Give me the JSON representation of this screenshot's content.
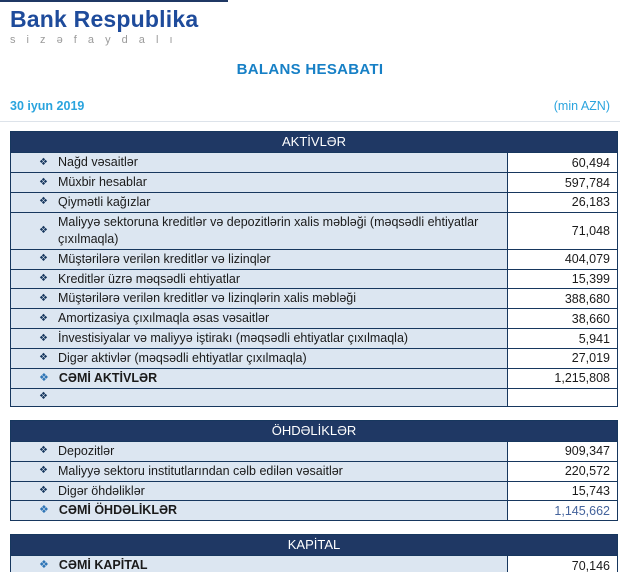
{
  "brand": {
    "name": "Bank Respublika",
    "tagline": "s i z ə  f a y d a l ı"
  },
  "title": "BALANS HESABATI",
  "meta": {
    "date": "30 iyun 2019",
    "unit": "(min AZN)"
  },
  "icons": {
    "bullet": "❖"
  },
  "colors": {
    "brand_blue": "#1e4b9b",
    "title_blue": "#1780c6",
    "meta_cyan": "#2aa4de",
    "header_navy": "#1f3864",
    "row_bg": "#dce6f1",
    "border_navy": "#17375e",
    "total_bullet_blue": "#2e75b6",
    "total_value_navy": "#44639c"
  },
  "sections": [
    {
      "header": "AKTİVLƏR",
      "rows": [
        {
          "label": "Nağd vəsaitlər",
          "value": "60,494"
        },
        {
          "label": "Müxbir hesablar",
          "value": "597,784"
        },
        {
          "label": "Qiymətli kağızlar",
          "value": "26,183"
        },
        {
          "label": "Maliyyə sektoruna kreditlər və depozitlərin xalis məbləği (məqsədli ehtiyatlar çıxılmaqla)",
          "value": "71,048"
        },
        {
          "label": "Müştərilərə verilən kreditlər və lizinqlər",
          "value": "404,079"
        },
        {
          "label": "Kreditlər üzrə məqsədli ehtiyatlar",
          "value": "15,399"
        },
        {
          "label": "Müştərilərə verilən kreditlər və lizinqlərin xalis məbləği",
          "value": "388,680"
        },
        {
          "label": "Amortizasiya çıxılmaqla əsas vəsaitlər",
          "value": "38,660"
        },
        {
          "label": "İnvestisiyalar və maliyyə iştirakı (məqsədli ehtiyatlar çıxılmaqla)",
          "value": "5,941"
        },
        {
          "label": "Digər aktivlər (məqsədli ehtiyatlar çıxılmaqla)",
          "value": "27,019"
        },
        {
          "label": "CƏMİ AKTİVLƏR",
          "value": "1,215,808",
          "total": true
        },
        {
          "label": "",
          "value": ""
        }
      ]
    },
    {
      "header": "ÖHDƏLİKLƏR",
      "rows": [
        {
          "label": "Depozitlər",
          "value": "909,347"
        },
        {
          "label": "Maliyyə sektoru institutlarından cəlb edilən vəsaitlər",
          "value": "220,572"
        },
        {
          "label": "Digər öhdəliklər",
          "value": "15,743"
        },
        {
          "label": "CƏMİ ÖHDƏLİKLƏR",
          "value": "1,145,662",
          "total": true,
          "value_navy": true
        }
      ]
    },
    {
      "header": "KAPİTAL",
      "rows": [
        {
          "label": "CƏMİ KAPİTAL",
          "value": "70,146",
          "total": true
        }
      ]
    }
  ]
}
